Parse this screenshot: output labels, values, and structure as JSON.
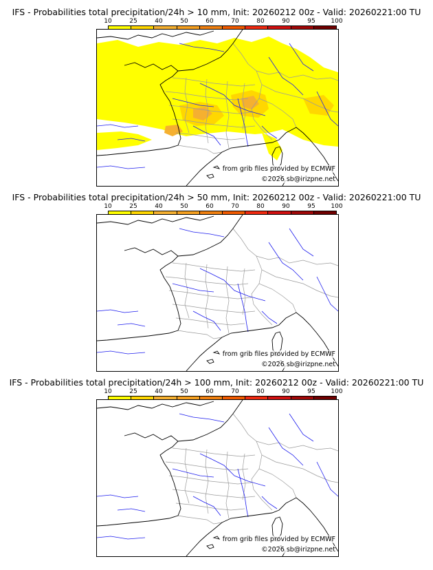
{
  "panels": [
    {
      "title": "IFS - Probabilities total precipitation/24h > 10 mm, Init: 20260212 00z - Valid: 20260221:00 TU",
      "threshold_mm": 10,
      "source_credit": "from grib files provided by ECMWF",
      "copyright": "©2026 sb@irizpne.net"
    },
    {
      "title": "IFS - Probabilities total precipitation/24h > 50 mm, Init: 20260212 00z - Valid: 20260221:00 TU",
      "threshold_mm": 50,
      "source_credit": "from grib files provided by ECMWF",
      "copyright": "©2026 sb@irizpne.net"
    },
    {
      "title": "IFS - Probabilities total precipitation/24h > 100 mm, Init: 20260212 00z - Valid: 20260221:00 TU",
      "threshold_mm": 100,
      "source_credit": "from grib files provided by ECMWF",
      "copyright": "©2026 sb@irizpne.net"
    }
  ],
  "legend": {
    "ticks": [
      "10",
      "25",
      "40",
      "50",
      "60",
      "70",
      "80",
      "90",
      "95",
      "100"
    ],
    "colors": [
      "#ffff00",
      "#ffd700",
      "#f5b030",
      "#f5a020",
      "#f08010",
      "#f05a00",
      "#f02a10",
      "#d01010",
      "#a00808",
      "#700000"
    ]
  },
  "colors": {
    "coast": "#000000",
    "borders": "#9a9a9a",
    "rivers": "#1a1aee",
    "prob_low": "#ffff00",
    "prob_mid": "#ffd700",
    "prob_high": "#f5b030"
  }
}
